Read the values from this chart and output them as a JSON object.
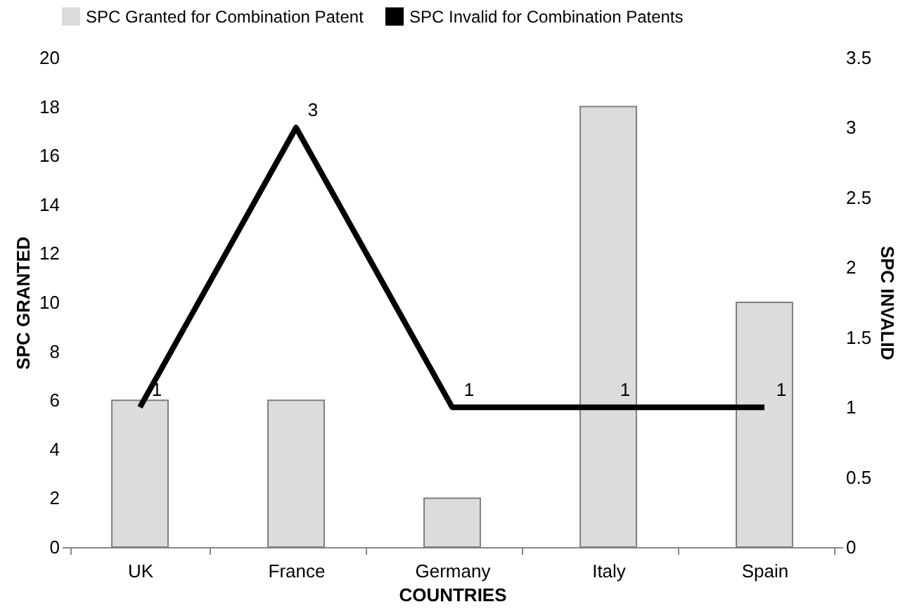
{
  "chart_data": {
    "type": "bar",
    "xlabel": "COUNTRIES",
    "ylabel": "SPC GRANTED",
    "y2label": "SPC INVALID",
    "categories": [
      "UK",
      "France",
      "Germany",
      "Italy",
      "Spain"
    ],
    "series": [
      {
        "name": "SPC Granted for Combination Patent",
        "color": "#dcdcdc",
        "values": [
          6,
          6,
          2,
          18,
          10
        ]
      },
      {
        "name": "SPC Invalid for Combination  Patents",
        "type": "line",
        "axis": "y2",
        "color": "#000000",
        "values": [
          1,
          3,
          1,
          1,
          1
        ],
        "value_labels": [
          "1",
          "3",
          "1",
          "1",
          "1"
        ]
      }
    ],
    "ylim": [
      0,
      20
    ],
    "yticks": [
      0,
      2,
      4,
      6,
      8,
      10,
      12,
      14,
      16,
      18,
      20
    ],
    "y2lim": [
      0,
      3.5
    ],
    "y2ticks": [
      0,
      0.5,
      1,
      1.5,
      2,
      2.5,
      3,
      3.5
    ],
    "grid": false,
    "legend": "top"
  }
}
